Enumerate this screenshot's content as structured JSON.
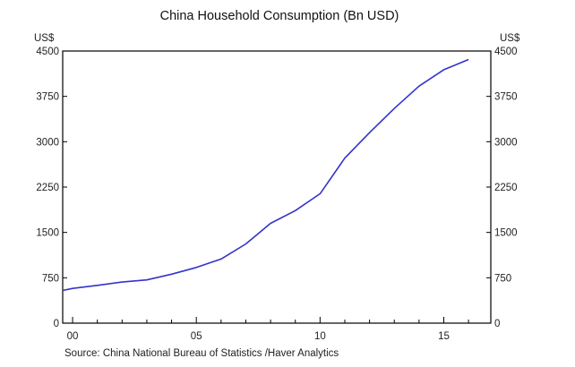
{
  "chart_data": {
    "type": "line",
    "title": "China Household Consumption (Bn USD)",
    "y_unit_left": "US$",
    "y_unit_right": "US$",
    "source": "Source:  China National Bureau of Statistics /Haver Analytics",
    "ylim": [
      0,
      4500
    ],
    "yticks": [
      0,
      750,
      1500,
      2250,
      3000,
      3750,
      4500
    ],
    "xlim": [
      -0.4,
      16.9
    ],
    "xticks": [
      0,
      5,
      10,
      15
    ],
    "xtick_labels": [
      "00",
      "05",
      "10",
      "15"
    ],
    "grid": false,
    "line_color": "#3333cc",
    "series": [
      {
        "x": [
          -0.4,
          0,
          1,
          2,
          3,
          4,
          5,
          6,
          7,
          8,
          9,
          10,
          11,
          12,
          13,
          14,
          15,
          16
        ],
        "values": [
          540,
          575,
          625,
          680,
          715,
          810,
          920,
          1060,
          1310,
          1650,
          1860,
          2140,
          2730,
          3150,
          3550,
          3920,
          4190,
          4360
        ]
      }
    ]
  }
}
